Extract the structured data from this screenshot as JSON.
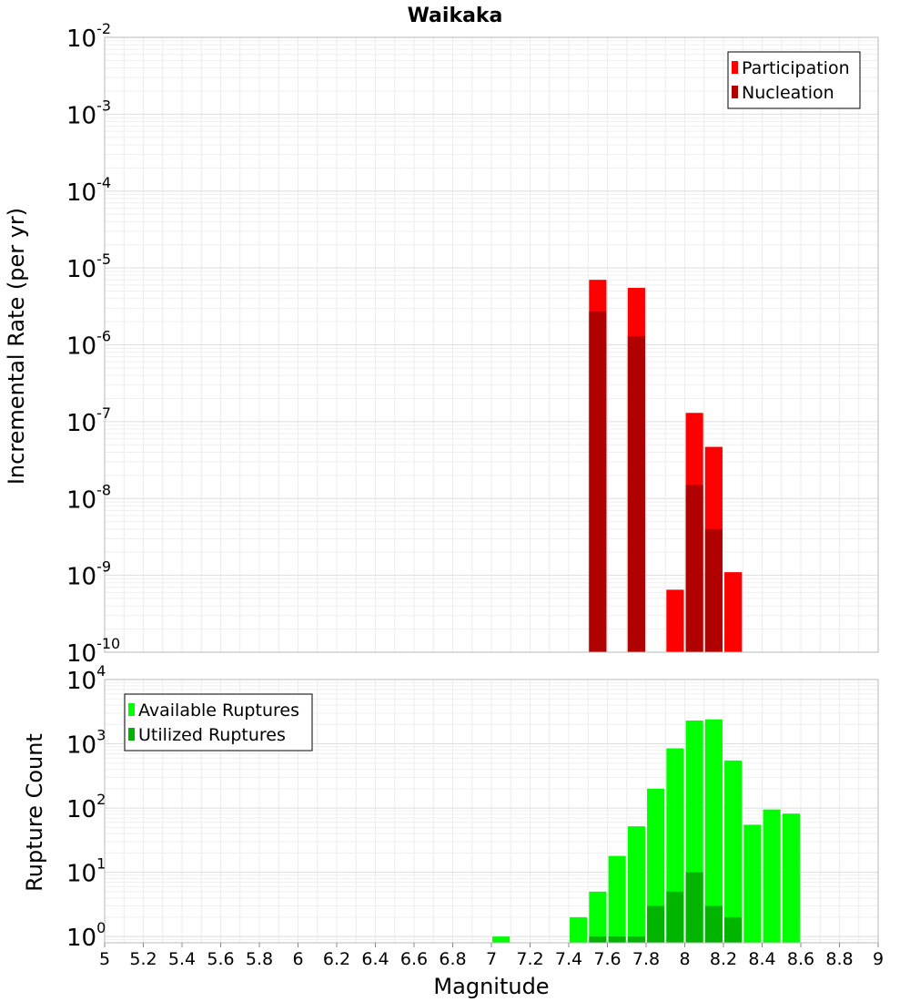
{
  "chart_data": [
    {
      "type": "bar",
      "title": "Waikaka",
      "ylabel": "Incremental Rate (per yr)",
      "xlabel": "",
      "xlim": [
        5,
        9
      ],
      "ylim": [
        1e-10,
        0.01
      ],
      "yscale": "log",
      "grid": true,
      "legend_position": "top-right",
      "bar_width": 0.09,
      "series": [
        {
          "name": "Participation",
          "color": "#ff0000",
          "x": [
            7.55,
            7.75,
            7.95,
            8.05,
            8.15,
            8.25
          ],
          "values": [
            7e-06,
            5.5e-06,
            6.5e-10,
            1.3e-07,
            4.7e-08,
            1.1e-09
          ]
        },
        {
          "name": "Nucleation",
          "color": "#b00000",
          "x": [
            7.55,
            7.75,
            8.05,
            8.15
          ],
          "values": [
            2.7e-06,
            1.3e-06,
            1.5e-08,
            4e-09
          ]
        }
      ]
    },
    {
      "type": "bar",
      "ylabel": "Rupture Count",
      "xlabel": "Magnitude",
      "xlim": [
        5,
        9
      ],
      "ylim": [
        0.8,
        10000
      ],
      "yscale": "log",
      "grid": true,
      "legend_position": "top-left",
      "bar_width": 0.09,
      "x_ticks": [
        "5",
        "5.2",
        "5.4",
        "5.6",
        "5.8",
        "6",
        "6.2",
        "6.4",
        "6.6",
        "6.8",
        "7",
        "7.2",
        "7.4",
        "7.6",
        "7.8",
        "8",
        "8.2",
        "8.4",
        "8.6",
        "8.8",
        "9"
      ],
      "series": [
        {
          "name": "Available Ruptures",
          "color": "#00ff00",
          "x": [
            7.05,
            7.45,
            7.55,
            7.65,
            7.75,
            7.85,
            7.95,
            8.05,
            8.15,
            8.25,
            8.35,
            8.45,
            8.55
          ],
          "values": [
            1,
            2,
            5,
            18,
            52,
            200,
            850,
            2300,
            2400,
            550,
            55,
            95,
            82
          ]
        },
        {
          "name": "Utilized Ruptures",
          "color": "#00b400",
          "x": [
            7.55,
            7.65,
            7.75,
            7.85,
            7.95,
            8.05,
            8.15,
            8.25
          ],
          "values": [
            1,
            1,
            1,
            3,
            5,
            10,
            3,
            2
          ]
        }
      ]
    }
  ]
}
